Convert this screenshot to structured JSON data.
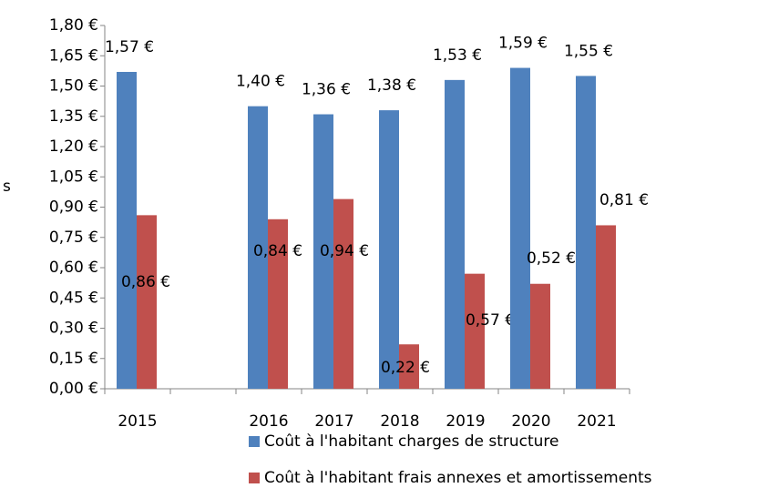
{
  "chart_data": {
    "type": "bar",
    "ylabel": "s",
    "categories": [
      "2015",
      null,
      "2016",
      "2017",
      "2018",
      "2019",
      "2020",
      "2021"
    ],
    "series": [
      {
        "name": "Coût à l'habitant charges de structure",
        "color": "#4f81bd",
        "values": [
          1.57,
          null,
          1.4,
          1.36,
          1.38,
          1.53,
          1.59,
          1.55
        ],
        "value_labels": [
          "1,57 €",
          null,
          "1,40 €",
          "1,36 €",
          "1,38 €",
          "1,53 €",
          "1,59 €",
          "1,55 €"
        ]
      },
      {
        "name": "Coût à l'habitant frais annexes et amortissements",
        "color": "#c0504d",
        "values": [
          0.86,
          null,
          0.84,
          0.94,
          0.22,
          0.57,
          0.52,
          0.81
        ],
        "value_labels": [
          "0,86 €",
          null,
          "0,84 €",
          "0,94 €",
          "0,22 €",
          "0,57 €",
          "0,52 €",
          "0,81 €"
        ]
      }
    ],
    "ylim": [
      0,
      1.8
    ],
    "yticks": [
      {
        "value": 0,
        "label": "0,00 €"
      },
      {
        "value": 0.15,
        "label": "0,15 €"
      },
      {
        "value": 0.3,
        "label": "0,30 €"
      },
      {
        "value": 0.45,
        "label": "0,45 €"
      },
      {
        "value": 0.6,
        "label": "0,60 €"
      },
      {
        "value": 0.75,
        "label": "0,75 €"
      },
      {
        "value": 0.9,
        "label": "0,90 €"
      },
      {
        "value": 1.05,
        "label": "1,05 €"
      },
      {
        "value": 1.2,
        "label": "1,20 €"
      },
      {
        "value": 1.35,
        "label": "1,35 €"
      },
      {
        "value": 1.5,
        "label": "1,50 €"
      },
      {
        "value": 1.65,
        "label": "1,65 €"
      },
      {
        "value": 1.8,
        "label": "1,80 €"
      }
    ],
    "grid": false
  }
}
